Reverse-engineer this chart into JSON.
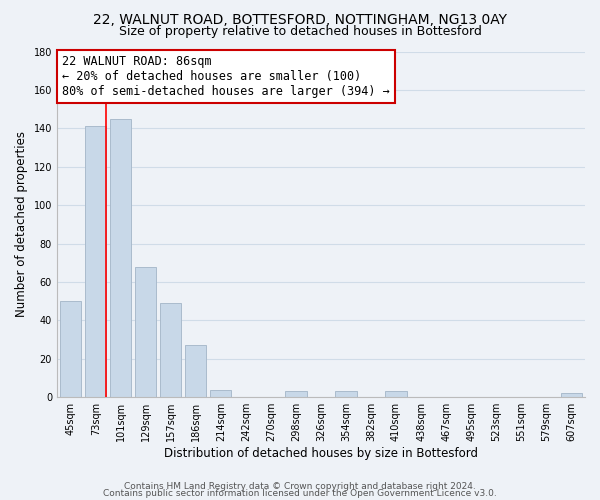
{
  "title": "22, WALNUT ROAD, BOTTESFORD, NOTTINGHAM, NG13 0AY",
  "subtitle": "Size of property relative to detached houses in Bottesford",
  "xlabel": "Distribution of detached houses by size in Bottesford",
  "ylabel": "Number of detached properties",
  "categories": [
    "45sqm",
    "73sqm",
    "101sqm",
    "129sqm",
    "157sqm",
    "186sqm",
    "214sqm",
    "242sqm",
    "270sqm",
    "298sqm",
    "326sqm",
    "354sqm",
    "382sqm",
    "410sqm",
    "438sqm",
    "467sqm",
    "495sqm",
    "523sqm",
    "551sqm",
    "579sqm",
    "607sqm"
  ],
  "values": [
    50,
    141,
    145,
    68,
    49,
    27,
    4,
    0,
    0,
    3,
    0,
    3,
    0,
    3,
    0,
    0,
    0,
    0,
    0,
    0,
    2
  ],
  "bar_color": "#c8d8e8",
  "bar_edge_color": "#aabbcc",
  "annotation_line1": "22 WALNUT ROAD: 86sqm",
  "annotation_line2": "← 20% of detached houses are smaller (100)",
  "annotation_line3": "80% of semi-detached houses are larger (394) →",
  "annotation_box_color": "white",
  "annotation_box_edge_color": "#cc0000",
  "red_line_x": 1.43,
  "ylim": [
    0,
    180
  ],
  "yticks": [
    0,
    20,
    40,
    60,
    80,
    100,
    120,
    140,
    160,
    180
  ],
  "footer_line1": "Contains HM Land Registry data © Crown copyright and database right 2024.",
  "footer_line2": "Contains public sector information licensed under the Open Government Licence v3.0.",
  "bg_color": "#eef2f7",
  "grid_color": "#d0dce8",
  "title_fontsize": 10,
  "subtitle_fontsize": 9,
  "axis_label_fontsize": 8.5,
  "tick_fontsize": 7,
  "annotation_fontsize": 8.5,
  "footer_fontsize": 6.5
}
